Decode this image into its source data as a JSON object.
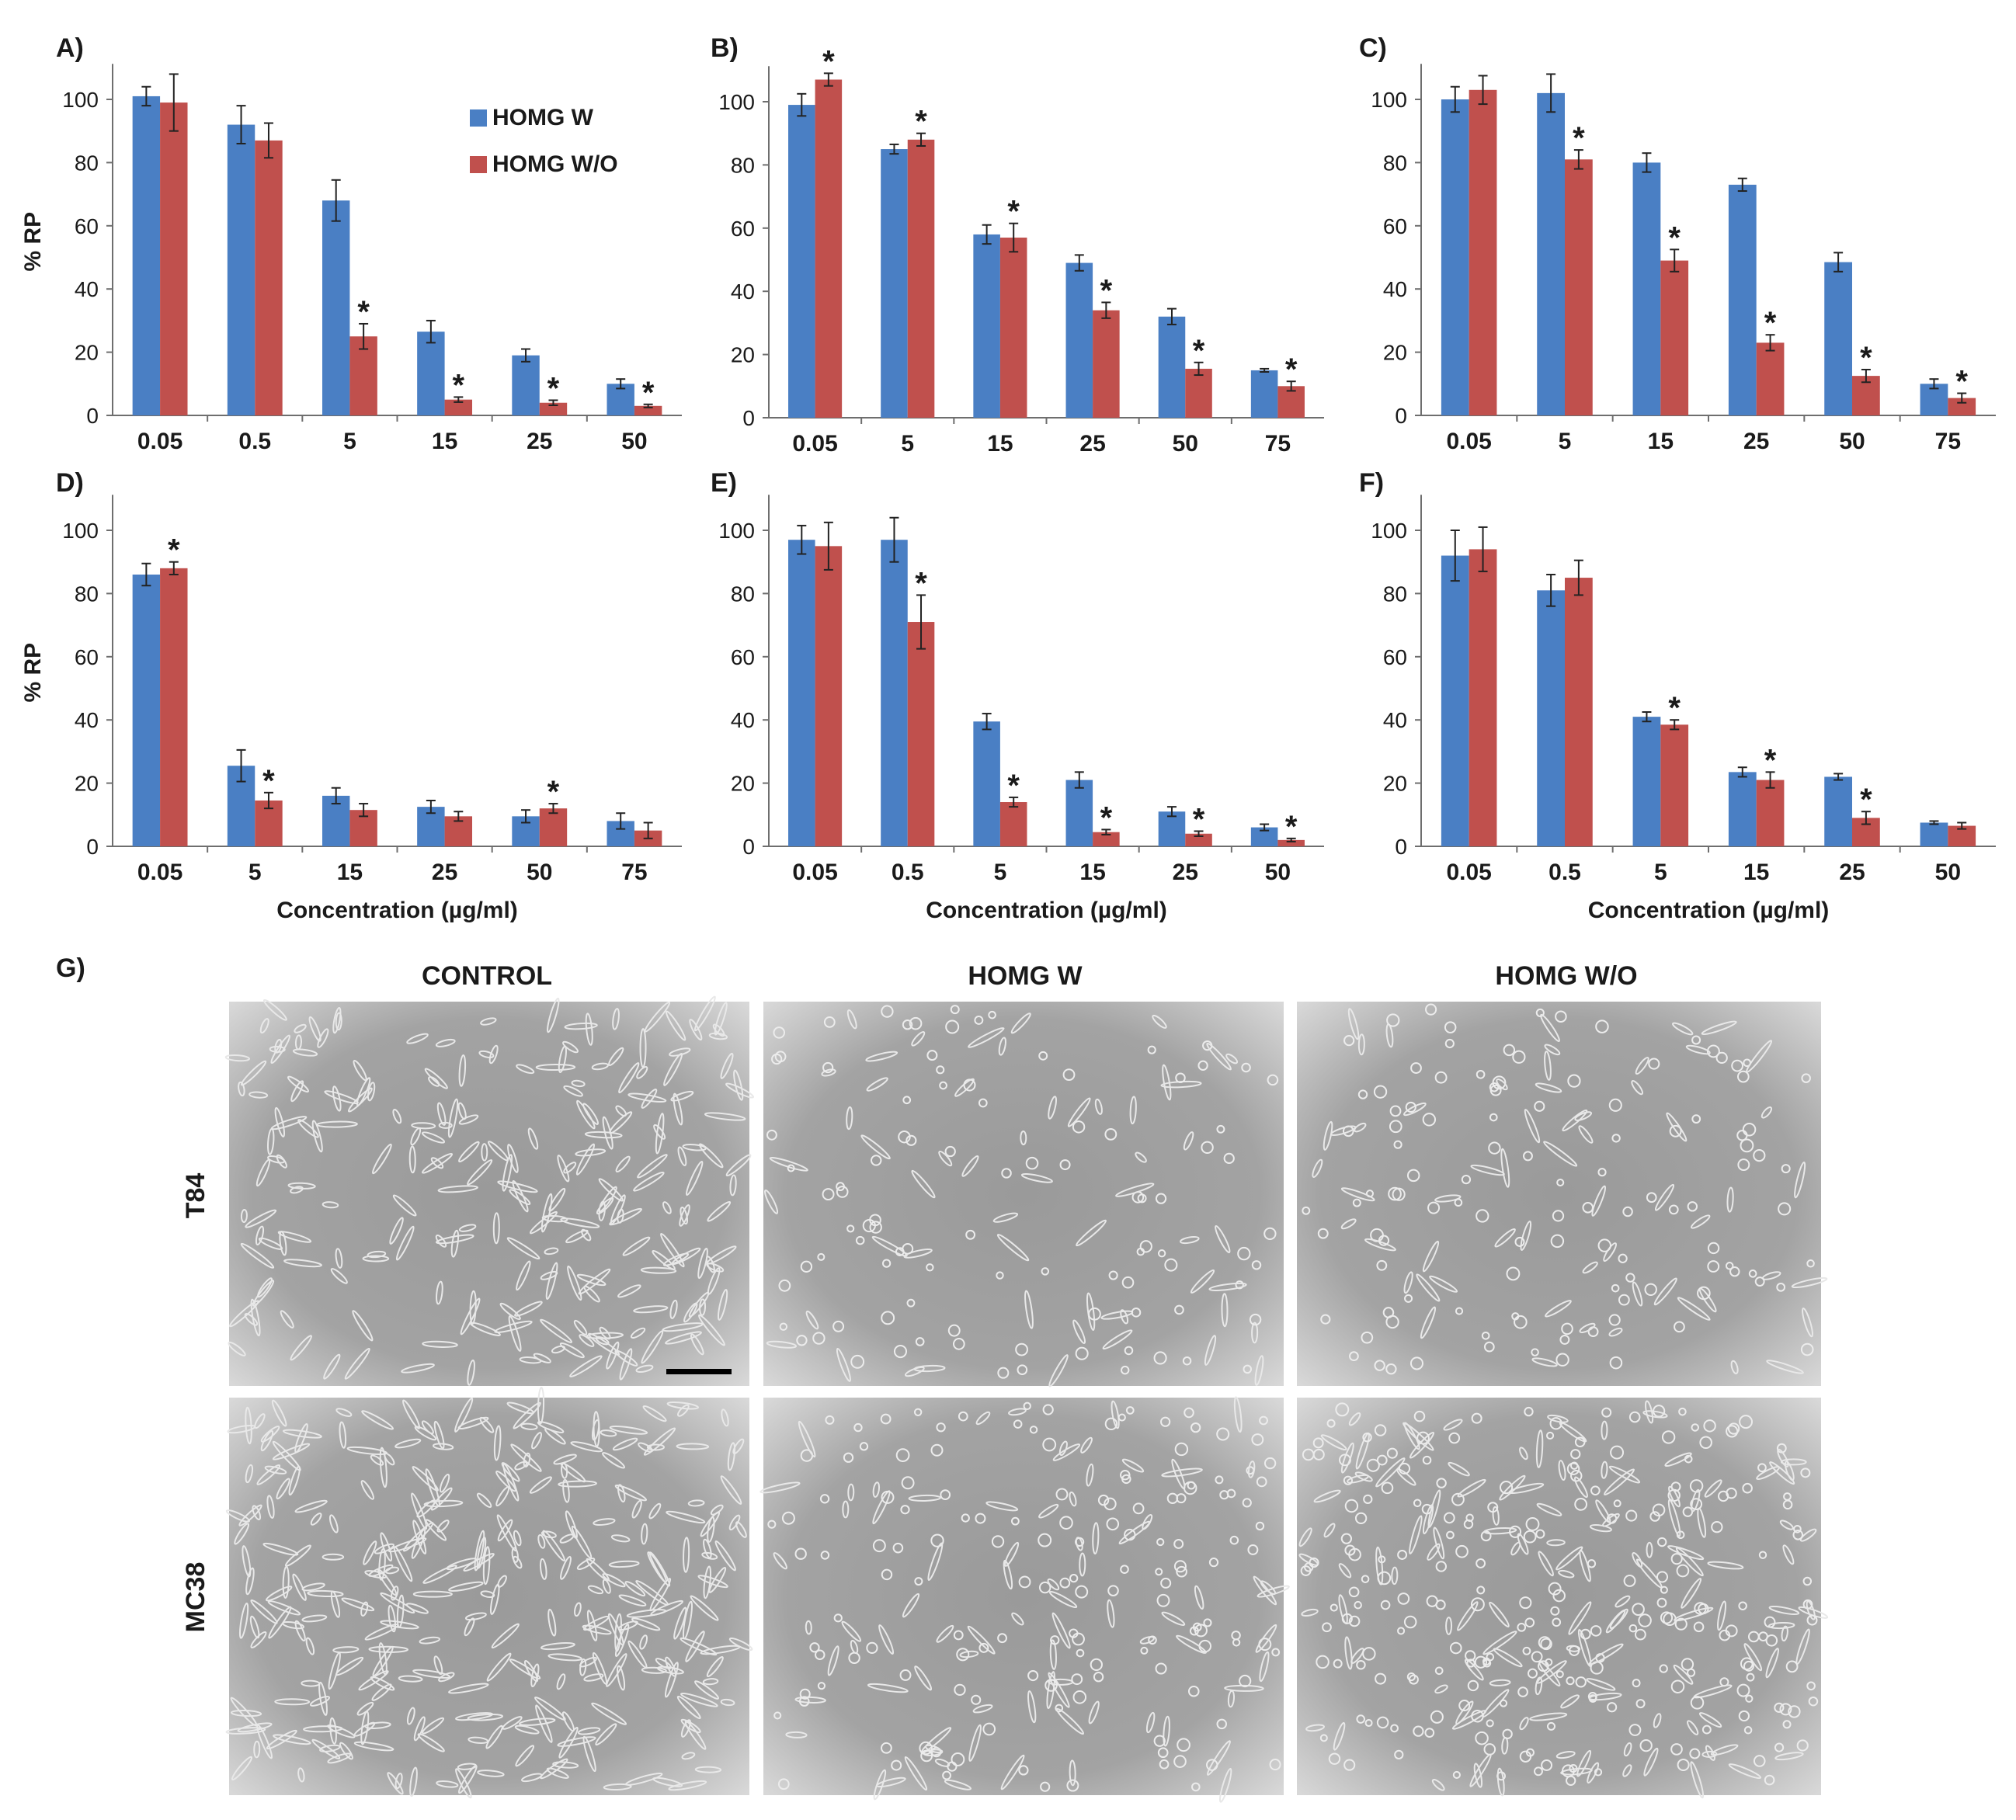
{
  "legend": {
    "items": [
      {
        "name": "HOMG W",
        "color": "#4a7fc4"
      },
      {
        "name": "HOMG W/O",
        "color": "#c0504d"
      }
    ]
  },
  "ylabel": "% RP",
  "xlabel": "Concentration (µg/ml)",
  "y_ticks": [
    "0",
    "20",
    "40",
    "60",
    "80",
    "100"
  ],
  "chart_data": [
    {
      "type": "bar",
      "panel": "A)",
      "categories": [
        "0.05",
        "0.5",
        "5",
        "15",
        "25",
        "50"
      ],
      "ylim": [
        0,
        110
      ],
      "series": [
        {
          "name": "HOMG W",
          "values": [
            101,
            92,
            68,
            26.5,
            19,
            10
          ],
          "errors": [
            3,
            6,
            6.5,
            3.5,
            2,
            1.5
          ]
        },
        {
          "name": "HOMG W/O",
          "values": [
            99,
            87,
            25,
            5,
            4,
            3
          ],
          "errors": [
            9,
            5.5,
            4,
            0.8,
            0.8,
            0.5
          ]
        }
      ],
      "significant": [
        false,
        false,
        true,
        true,
        true,
        true
      ]
    },
    {
      "type": "bar",
      "panel": "B)",
      "categories": [
        "0.05",
        "5",
        "15",
        "25",
        "50",
        "75"
      ],
      "ylim": [
        0,
        110
      ],
      "series": [
        {
          "name": "HOMG W",
          "values": [
            99,
            85,
            58,
            49,
            32,
            15
          ],
          "errors": [
            3.5,
            1.5,
            3,
            2.5,
            2.5,
            0.5
          ]
        },
        {
          "name": "HOMG W/O",
          "values": [
            107,
            88,
            57,
            34,
            15.5,
            10
          ],
          "errors": [
            2,
            2,
            4.5,
            2.5,
            2,
            1.5
          ]
        }
      ],
      "significant": [
        true,
        true,
        true,
        true,
        true,
        true
      ]
    },
    {
      "type": "bar",
      "panel": "C)",
      "categories": [
        "0.05",
        "5",
        "15",
        "25",
        "50",
        "75"
      ],
      "ylim": [
        0,
        110
      ],
      "series": [
        {
          "name": "HOMG W",
          "values": [
            100,
            102,
            80,
            73,
            48.5,
            10
          ],
          "errors": [
            4,
            6,
            3,
            2,
            3,
            1.5
          ]
        },
        {
          "name": "HOMG W/O",
          "values": [
            103,
            81,
            49,
            23,
            12.5,
            5.5
          ],
          "errors": [
            4.5,
            3,
            3.5,
            2.5,
            2,
            1.5
          ]
        }
      ],
      "significant": [
        false,
        true,
        true,
        true,
        true,
        true
      ]
    },
    {
      "type": "bar",
      "panel": "D)",
      "categories": [
        "0.05",
        "5",
        "15",
        "25",
        "50",
        "75"
      ],
      "ylim": [
        0,
        110
      ],
      "series": [
        {
          "name": "HOMG W",
          "values": [
            86,
            25.5,
            16,
            12.5,
            9.5,
            8
          ],
          "errors": [
            3.5,
            5,
            2.5,
            2,
            2,
            2.5
          ]
        },
        {
          "name": "HOMG W/O",
          "values": [
            88,
            14.5,
            11.5,
            9.5,
            12,
            5
          ],
          "errors": [
            2,
            2.5,
            2,
            1.5,
            1.5,
            2.5
          ]
        }
      ],
      "significant": [
        true,
        true,
        false,
        false,
        true,
        false
      ]
    },
    {
      "type": "bar",
      "panel": "E)",
      "categories": [
        "0.05",
        "0.5",
        "5",
        "15",
        "25",
        "50"
      ],
      "ylim": [
        0,
        110
      ],
      "series": [
        {
          "name": "HOMG W",
          "values": [
            97,
            97,
            39.5,
            21,
            11,
            6
          ],
          "errors": [
            4.5,
            7,
            2.5,
            2.5,
            1.5,
            1
          ]
        },
        {
          "name": "HOMG W/O",
          "values": [
            95,
            71,
            14,
            4.5,
            4,
            2
          ],
          "errors": [
            7.5,
            8.5,
            1.5,
            0.8,
            0.8,
            0.5
          ]
        }
      ],
      "significant": [
        false,
        true,
        true,
        true,
        true,
        true
      ]
    },
    {
      "type": "bar",
      "panel": "F)",
      "categories": [
        "0.05",
        "0.5",
        "5",
        "15",
        "25",
        "50"
      ],
      "ylim": [
        0,
        110
      ],
      "series": [
        {
          "name": "HOMG W",
          "values": [
            92,
            81,
            41,
            23.5,
            22,
            7.5
          ],
          "errors": [
            8,
            5,
            1.5,
            1.5,
            1,
            0.5
          ]
        },
        {
          "name": "HOMG W/O",
          "values": [
            94,
            85,
            38.5,
            21,
            9,
            6.5
          ],
          "errors": [
            7,
            5.5,
            1.5,
            2.5,
            2,
            1
          ]
        }
      ],
      "significant": [
        false,
        false,
        true,
        true,
        true,
        false
      ]
    }
  ],
  "panel_g": {
    "label": "G)",
    "columns": [
      "CONTROL",
      "HOMG W",
      "HOMG W/O"
    ],
    "rows": [
      "T84",
      "MC38"
    ]
  }
}
